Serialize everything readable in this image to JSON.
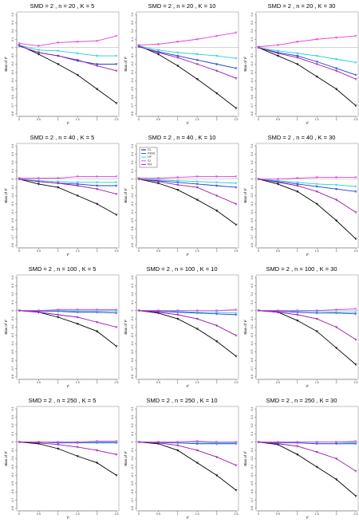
{
  "chart_data": [
    {
      "type": "line",
      "title": "SMD = 2 , n = 20 , K = 5",
      "xlabel": "τ²",
      "ylabel": "Bias of τ²",
      "x": [
        0,
        0.5,
        1,
        1.5,
        2,
        2.5
      ],
      "xlim": [
        0,
        2.5
      ],
      "xticks": [
        0,
        0.5,
        1,
        1.5,
        2,
        2.5
      ],
      "ylim": [
        -0.8,
        0.4
      ],
      "yticks": [
        -0.8,
        -0.7,
        -0.6,
        -0.5,
        -0.4,
        -0.3,
        -0.2,
        -0.1,
        0,
        0.1,
        0.2,
        0.3,
        0.4
      ],
      "reference_line": 0,
      "series": [
        {
          "color": "#000000",
          "values": [
            0.03,
            -0.08,
            -0.2,
            -0.33,
            -0.5,
            -0.67
          ]
        },
        {
          "color": "#1f3fd6",
          "values": [
            0.02,
            -0.06,
            -0.1,
            -0.16,
            -0.2,
            -0.2
          ]
        },
        {
          "color": "#22d0d8",
          "values": [
            0.03,
            -0.03,
            -0.04,
            -0.07,
            -0.1,
            -0.1
          ]
        },
        {
          "color": "#e040e0",
          "values": [
            0.05,
            0.02,
            0.06,
            0.07,
            0.08,
            0.14
          ]
        },
        {
          "color": "#9a1aa8",
          "values": [
            0.02,
            -0.06,
            -0.1,
            -0.15,
            -0.22,
            -0.28
          ]
        }
      ]
    },
    {
      "type": "line",
      "title": "SMD = 2 , n = 20 , K = 10",
      "xlabel": "τ²",
      "ylabel": "Bias of τ²",
      "x": [
        0,
        0.5,
        1,
        1.5,
        2,
        2.5
      ],
      "xlim": [
        0,
        2.5
      ],
      "xticks": [
        0,
        0.5,
        1,
        1.5,
        2,
        2.5
      ],
      "ylim": [
        -0.8,
        0.4
      ],
      "yticks": [
        -0.8,
        -0.7,
        -0.6,
        -0.5,
        -0.4,
        -0.3,
        -0.2,
        -0.1,
        0,
        0.1,
        0.2,
        0.3,
        0.4
      ],
      "reference_line": 0,
      "series": [
        {
          "color": "#000000",
          "values": [
            0.02,
            -0.08,
            -0.22,
            -0.38,
            -0.55,
            -0.73
          ]
        },
        {
          "color": "#1f3fd6",
          "values": [
            0.01,
            -0.05,
            -0.1,
            -0.15,
            -0.2,
            -0.25
          ]
        },
        {
          "color": "#22d0d8",
          "values": [
            0.02,
            -0.03,
            -0.06,
            -0.08,
            -0.1,
            -0.13
          ]
        },
        {
          "color": "#e040e0",
          "values": [
            0.03,
            0.04,
            0.07,
            0.1,
            0.14,
            0.18
          ]
        },
        {
          "color": "#9a1aa8",
          "values": [
            0.01,
            -0.06,
            -0.12,
            -0.2,
            -0.28,
            -0.37
          ]
        }
      ]
    },
    {
      "type": "line",
      "title": "SMD = 2 , n = 20 , K = 30",
      "xlabel": "τ²",
      "ylabel": "Bias of τ²",
      "x": [
        0,
        0.5,
        1,
        1.5,
        2,
        2.5
      ],
      "xlim": [
        0,
        2.5
      ],
      "xticks": [
        0,
        0.5,
        1,
        1.5,
        2,
        2.5
      ],
      "ylim": [
        -0.8,
        0.4
      ],
      "yticks": [
        -0.8,
        -0.7,
        -0.6,
        -0.5,
        -0.4,
        -0.3,
        -0.2,
        -0.1,
        0,
        0.1,
        0.2,
        0.3,
        0.4
      ],
      "reference_line": 0,
      "series": [
        {
          "color": "#000000",
          "values": [
            0,
            -0.1,
            -0.2,
            -0.35,
            -0.5,
            -0.7
          ]
        },
        {
          "color": "#1f3fd6",
          "values": [
            0,
            -0.06,
            -0.1,
            -0.17,
            -0.25,
            -0.33
          ]
        },
        {
          "color": "#22d0d8",
          "values": [
            0,
            -0.04,
            -0.07,
            -0.1,
            -0.14,
            -0.18
          ]
        },
        {
          "color": "#e040e0",
          "values": [
            0.01,
            0.03,
            0.07,
            0.1,
            0.12,
            0.14
          ]
        },
        {
          "color": "#9a1aa8",
          "values": [
            0,
            -0.07,
            -0.12,
            -0.2,
            -0.28,
            -0.38
          ]
        }
      ]
    },
    {
      "type": "line",
      "title": "SMD = 2 , n = 40 , K = 5",
      "xlabel": "τ²",
      "ylabel": "Bias of τ²",
      "x": [
        0,
        0.5,
        1,
        1.5,
        2,
        2.5
      ],
      "xlim": [
        0,
        2.5
      ],
      "xticks": [
        0,
        0.5,
        1,
        1.5,
        2,
        2.5
      ],
      "ylim": [
        -0.8,
        0.4
      ],
      "yticks": [
        -0.8,
        -0.7,
        -0.6,
        -0.5,
        -0.4,
        -0.3,
        -0.2,
        -0.1,
        0,
        0.1,
        0.2,
        0.3,
        0.4
      ],
      "reference_line": 0,
      "series": [
        {
          "color": "#000000",
          "values": [
            0,
            -0.06,
            -0.1,
            -0.2,
            -0.3,
            -0.43
          ]
        },
        {
          "color": "#1f3fd6",
          "values": [
            0,
            -0.03,
            -0.05,
            -0.06,
            -0.08,
            -0.08
          ]
        },
        {
          "color": "#22d0d8",
          "values": [
            0,
            -0.02,
            -0.03,
            -0.04,
            -0.04,
            -0.04
          ]
        },
        {
          "color": "#e040e0",
          "values": [
            0.01,
            0.01,
            0.01,
            0.03,
            0.03,
            0.03
          ]
        },
        {
          "color": "#9a1aa8",
          "values": [
            0,
            -0.03,
            -0.05,
            -0.08,
            -0.12,
            -0.18
          ]
        }
      ]
    },
    {
      "type": "line",
      "title": "SMD = 2 , n = 40 , K = 10",
      "xlabel": "τ²",
      "ylabel": "Bias of τ²",
      "x": [
        0,
        0.5,
        1,
        1.5,
        2,
        2.5
      ],
      "xlim": [
        0,
        2.5
      ],
      "xticks": [
        0,
        0.5,
        1,
        1.5,
        2,
        2.5
      ],
      "ylim": [
        -0.8,
        0.4
      ],
      "yticks": [
        -0.8,
        -0.7,
        -0.6,
        -0.5,
        -0.4,
        -0.3,
        -0.2,
        -0.1,
        0,
        0.1,
        0.2,
        0.3,
        0.4
      ],
      "reference_line": 0,
      "legend": "upper left",
      "series": [
        {
          "name": "DL",
          "color": "#000000",
          "values": [
            0,
            -0.05,
            -0.13,
            -0.25,
            -0.38,
            -0.55
          ]
        },
        {
          "name": "REML",
          "color": "#1f3fd6",
          "values": [
            0,
            -0.02,
            -0.04,
            -0.06,
            -0.08,
            -0.1
          ]
        },
        {
          "name": "HP",
          "color": "#22d0d8",
          "values": [
            0,
            -0.01,
            -0.02,
            -0.03,
            -0.04,
            -0.05
          ]
        },
        {
          "name": "SJ",
          "color": "#e040e0",
          "values": [
            0.01,
            0.01,
            0.02,
            0.03,
            0.03,
            0.03
          ]
        },
        {
          "name": "PM",
          "color": "#9a1aa8",
          "values": [
            0,
            -0.03,
            -0.07,
            -0.1,
            -0.2,
            -0.3
          ]
        }
      ]
    },
    {
      "type": "line",
      "title": "SMD = 2 , n = 40 , K = 30",
      "xlabel": "τ²",
      "ylabel": "Bias of τ²",
      "x": [
        0,
        0.5,
        1,
        1.5,
        2,
        2.5
      ],
      "xlim": [
        0,
        2.5
      ],
      "xticks": [
        0,
        0.5,
        1,
        1.5,
        2,
        2.5
      ],
      "ylim": [
        -0.8,
        0.4
      ],
      "yticks": [
        -0.8,
        -0.7,
        -0.6,
        -0.5,
        -0.4,
        -0.3,
        -0.2,
        -0.1,
        0,
        0.1,
        0.2,
        0.3,
        0.4
      ],
      "reference_line": 0,
      "series": [
        {
          "color": "#000000",
          "values": [
            0,
            -0.06,
            -0.15,
            -0.3,
            -0.5,
            -0.72
          ]
        },
        {
          "color": "#1f3fd6",
          "values": [
            0,
            -0.03,
            -0.06,
            -0.09,
            -0.12,
            -0.15
          ]
        },
        {
          "color": "#22d0d8",
          "values": [
            0,
            -0.02,
            -0.04,
            -0.06,
            -0.07,
            -0.09
          ]
        },
        {
          "color": "#e040e0",
          "values": [
            0,
            0,
            0.01,
            0.02,
            0.02,
            0.02
          ]
        },
        {
          "color": "#9a1aa8",
          "values": [
            0,
            -0.04,
            -0.08,
            -0.15,
            -0.25,
            -0.4
          ]
        }
      ]
    },
    {
      "type": "line",
      "title": "SMD = 2 , n = 100 , K = 5",
      "xlabel": "τ²",
      "ylabel": "Bias of τ²",
      "x": [
        0,
        0.5,
        1,
        1.5,
        2,
        2.5
      ],
      "xlim": [
        0,
        2.5
      ],
      "xticks": [
        0,
        0.5,
        1,
        1.5,
        2,
        2.5
      ],
      "ylim": [
        -0.8,
        0.4
      ],
      "yticks": [
        -0.8,
        -0.7,
        -0.6,
        -0.5,
        -0.4,
        -0.3,
        -0.2,
        -0.1,
        0,
        0.1,
        0.2,
        0.3,
        0.4
      ],
      "reference_line": 0,
      "series": [
        {
          "color": "#000000",
          "values": [
            0,
            -0.02,
            -0.08,
            -0.16,
            -0.25,
            -0.43
          ]
        },
        {
          "color": "#1f3fd6",
          "values": [
            0,
            -0.01,
            -0.01,
            -0.02,
            -0.02,
            -0.03
          ]
        },
        {
          "color": "#22d0d8",
          "values": [
            0,
            0,
            0,
            -0.01,
            -0.01,
            -0.01
          ]
        },
        {
          "color": "#e040e0",
          "values": [
            0,
            0,
            0.01,
            0.01,
            0.01,
            0.01
          ]
        },
        {
          "color": "#9a1aa8",
          "values": [
            0,
            -0.02,
            -0.05,
            -0.08,
            -0.14,
            -0.2
          ]
        }
      ]
    },
    {
      "type": "line",
      "title": "SMD = 2 , n = 100 , K = 10",
      "xlabel": "τ²",
      "ylabel": "Bias of τ²",
      "x": [
        0,
        0.5,
        1,
        1.5,
        2,
        2.5
      ],
      "xlim": [
        0,
        2.5
      ],
      "xticks": [
        0,
        0.5,
        1,
        1.5,
        2,
        2.5
      ],
      "ylim": [
        -0.8,
        0.4
      ],
      "yticks": [
        -0.8,
        -0.7,
        -0.6,
        -0.5,
        -0.4,
        -0.3,
        -0.2,
        -0.1,
        0,
        0.1,
        0.2,
        0.3,
        0.4
      ],
      "reference_line": 0,
      "series": [
        {
          "color": "#000000",
          "values": [
            0,
            -0.03,
            -0.1,
            -0.22,
            -0.37,
            -0.55
          ]
        },
        {
          "color": "#1f3fd6",
          "values": [
            0,
            -0.01,
            -0.02,
            -0.03,
            -0.04,
            -0.05
          ]
        },
        {
          "color": "#22d0d8",
          "values": [
            0,
            0,
            -0.01,
            -0.02,
            -0.02,
            -0.03
          ]
        },
        {
          "color": "#e040e0",
          "values": [
            0,
            0,
            0,
            0,
            0,
            0.01
          ]
        },
        {
          "color": "#9a1aa8",
          "values": [
            0,
            -0.02,
            -0.05,
            -0.1,
            -0.18,
            -0.3
          ]
        }
      ]
    },
    {
      "type": "line",
      "title": "SMD = 2 , n = 100 , K = 30",
      "xlabel": "τ²",
      "ylabel": "Bias of τ²",
      "x": [
        0,
        0.5,
        1,
        1.5,
        2,
        2.5
      ],
      "xlim": [
        0,
        2.5
      ],
      "xticks": [
        0,
        0.5,
        1,
        1.5,
        2,
        2.5
      ],
      "ylim": [
        -0.8,
        0.4
      ],
      "yticks": [
        -0.8,
        -0.7,
        -0.6,
        -0.5,
        -0.4,
        -0.3,
        -0.2,
        -0.1,
        0,
        0.1,
        0.2,
        0.3,
        0.4
      ],
      "reference_line": 0,
      "series": [
        {
          "color": "#000000",
          "values": [
            0,
            -0.02,
            -0.12,
            -0.25,
            -0.45,
            -0.65
          ]
        },
        {
          "color": "#1f3fd6",
          "values": [
            0,
            -0.01,
            -0.02,
            -0.03,
            -0.03,
            -0.04
          ]
        },
        {
          "color": "#22d0d8",
          "values": [
            0,
            0,
            -0.01,
            -0.01,
            -0.02,
            -0.02
          ]
        },
        {
          "color": "#e040e0",
          "values": [
            0,
            0,
            0,
            0,
            0.01,
            0.02
          ]
        },
        {
          "color": "#9a1aa8",
          "values": [
            0,
            -0.02,
            -0.05,
            -0.1,
            -0.2,
            -0.35
          ]
        }
      ]
    },
    {
      "type": "line",
      "title": "SMD = 2 , n = 250 , K = 5",
      "xlabel": "τ²",
      "ylabel": "Bias of τ²",
      "x": [
        0,
        0.5,
        1,
        1.5,
        2,
        2.5
      ],
      "xlim": [
        0,
        2.5
      ],
      "xticks": [
        0,
        0.5,
        1,
        1.5,
        2,
        2.5
      ],
      "ylim": [
        -0.8,
        0.4
      ],
      "yticks": [
        -0.8,
        -0.7,
        -0.6,
        -0.5,
        -0.4,
        -0.3,
        -0.2,
        -0.1,
        0,
        0.1,
        0.2,
        0.3,
        0.4
      ],
      "reference_line": 0,
      "series": [
        {
          "color": "#000000",
          "values": [
            0,
            -0.02,
            -0.08,
            -0.17,
            -0.25,
            -0.4
          ]
        },
        {
          "color": "#1f3fd6",
          "values": [
            0,
            0,
            -0.01,
            -0.01,
            -0.01,
            -0.01
          ]
        },
        {
          "color": "#22d0d8",
          "values": [
            0,
            0,
            0,
            0,
            0,
            0
          ]
        },
        {
          "color": "#e040e0",
          "values": [
            0,
            0,
            0,
            0,
            0.01,
            0.01
          ]
        },
        {
          "color": "#9a1aa8",
          "values": [
            0,
            -0.01,
            -0.03,
            -0.06,
            -0.1,
            -0.15
          ]
        }
      ]
    },
    {
      "type": "line",
      "title": "SMD = 2 , n = 250 , K = 10",
      "xlabel": "τ²",
      "ylabel": "Bias of τ²",
      "x": [
        0,
        0.5,
        1,
        1.5,
        2,
        2.5
      ],
      "xlim": [
        0,
        2.5
      ],
      "xticks": [
        0,
        0.5,
        1,
        1.5,
        2,
        2.5
      ],
      "ylim": [
        -0.8,
        0.4
      ],
      "yticks": [
        -0.8,
        -0.7,
        -0.6,
        -0.5,
        -0.4,
        -0.3,
        -0.2,
        -0.1,
        0,
        0.1,
        0.2,
        0.3,
        0.4
      ],
      "reference_line": 0,
      "series": [
        {
          "color": "#000000",
          "values": [
            0,
            -0.02,
            -0.1,
            -0.25,
            -0.4,
            -0.58
          ]
        },
        {
          "color": "#1f3fd6",
          "values": [
            0,
            -0.01,
            -0.01,
            -0.02,
            -0.02,
            -0.02
          ]
        },
        {
          "color": "#22d0d8",
          "values": [
            0,
            0,
            0,
            0,
            -0.01,
            -0.01
          ]
        },
        {
          "color": "#e040e0",
          "values": [
            0,
            0,
            0,
            0.01,
            0,
            0
          ]
        },
        {
          "color": "#9a1aa8",
          "values": [
            0,
            -0.01,
            -0.04,
            -0.1,
            -0.18,
            -0.28
          ]
        }
      ]
    },
    {
      "type": "line",
      "title": "SMD = 2 , n = 250 , K = 30",
      "xlabel": "τ²",
      "ylabel": "Bias of τ²",
      "x": [
        0,
        0.5,
        1,
        1.5,
        2,
        2.5
      ],
      "xlim": [
        0,
        2.5
      ],
      "xticks": [
        0,
        0.5,
        1,
        1.5,
        2,
        2.5
      ],
      "ylim": [
        -0.8,
        0.4
      ],
      "yticks": [
        -0.8,
        -0.7,
        -0.6,
        -0.5,
        -0.4,
        -0.3,
        -0.2,
        -0.1,
        0,
        0.1,
        0.2,
        0.3,
        0.4
      ],
      "reference_line": 0,
      "series": [
        {
          "color": "#000000",
          "values": [
            0,
            -0.03,
            -0.15,
            -0.3,
            -0.45,
            -0.65
          ]
        },
        {
          "color": "#1f3fd6",
          "values": [
            0,
            -0.01,
            -0.01,
            -0.02,
            -0.02,
            -0.02
          ]
        },
        {
          "color": "#22d0d8",
          "values": [
            0,
            0,
            0,
            0,
            0,
            -0.01
          ]
        },
        {
          "color": "#e040e0",
          "values": [
            0,
            0,
            0,
            0,
            0,
            0.01
          ]
        },
        {
          "color": "#9a1aa8",
          "values": [
            0,
            -0.02,
            -0.05,
            -0.12,
            -0.2,
            -0.35
          ]
        }
      ]
    }
  ]
}
